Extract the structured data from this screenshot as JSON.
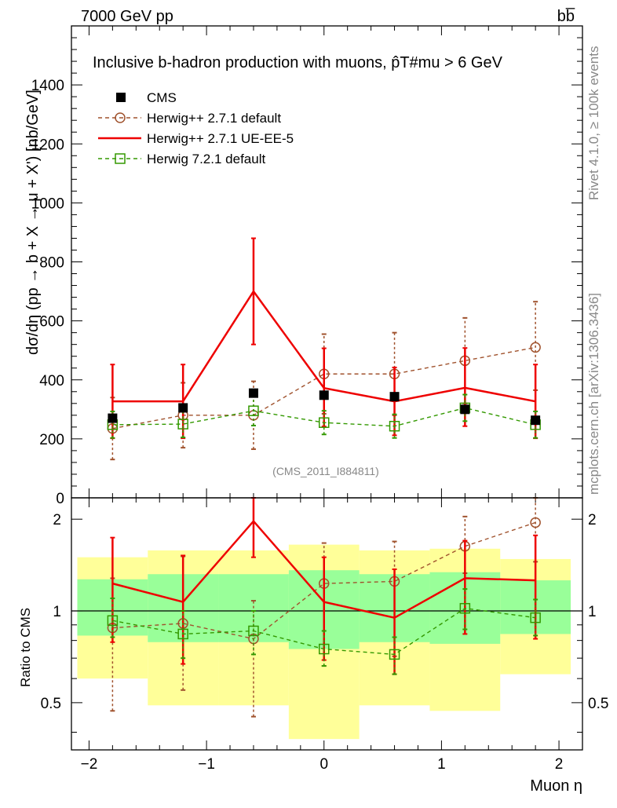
{
  "header": {
    "left_label": "7000 GeV pp",
    "right_label": "bb̅",
    "side_label_top": "Rivet 4.1.0, ≥ 100k events",
    "side_label_bottom": "mcplots.cern.ch [arXiv:1306.3436]",
    "analysis_tag": "(CMS_2011_I884811)"
  },
  "chart_data": [
    {
      "type": "scatter",
      "panel": "main",
      "title": "Inclusive b-hadron production with muons, p̂T#mu > 6 GeV",
      "xlabel": "Muon η",
      "ylabel": "dσ/dη (pp → b + X → μ + X') [nb/GeV]",
      "xlim": [
        -2.15,
        2.2
      ],
      "ylim": [
        0,
        1600
      ],
      "yticks": [
        0,
        200,
        400,
        600,
        800,
        1000,
        1200,
        1400
      ],
      "ytick_labels": [
        "0",
        "200",
        "400",
        "600",
        "800",
        "1000",
        "1200",
        "1400"
      ],
      "legend_position": "top-left",
      "series": [
        {
          "name": "CMS",
          "kind": "data",
          "color": "#000000",
          "x": [
            -1.8,
            -1.2,
            -0.6,
            0.0,
            0.6,
            1.2,
            1.8
          ],
          "y": [
            270,
            305,
            355,
            348,
            343,
            300,
            263
          ]
        },
        {
          "name": "Herwig++ 2.7.1 default",
          "kind": "circle-dashed",
          "color": "#a0522d",
          "x": [
            -1.8,
            -1.2,
            -0.6,
            0.0,
            0.6,
            1.2,
            1.8
          ],
          "y": [
            235,
            280,
            280,
            420,
            420,
            465,
            510
          ],
          "err_low": [
            105,
            110,
            115,
            135,
            140,
            145,
            145
          ],
          "err_high": [
            105,
            110,
            115,
            135,
            140,
            145,
            155
          ]
        },
        {
          "name": "Herwig++ 2.7.1 UE-EE-5",
          "kind": "step-solid",
          "color": "#ee0000",
          "edges": [
            -1.8,
            -1.2,
            -0.6,
            0.0,
            0.6,
            1.2,
            1.8
          ],
          "x": [
            -1.8,
            -1.2,
            -0.6,
            0.0,
            0.6,
            1.2,
            1.8
          ],
          "y": [
            327,
            327,
            700,
            372,
            327,
            373,
            327
          ],
          "err_low": [
            125,
            125,
            180,
            130,
            115,
            130,
            125
          ],
          "err_high": [
            125,
            125,
            180,
            135,
            115,
            135,
            125
          ]
        },
        {
          "name": "Herwig 7.2.1 default",
          "kind": "square-dashed",
          "color": "#339900",
          "x": [
            -1.8,
            -1.2,
            -0.6,
            0.0,
            0.6,
            1.2,
            1.8
          ],
          "y": [
            248,
            250,
            295,
            255,
            243,
            305,
            248
          ],
          "err_low": [
            45,
            45,
            50,
            40,
            40,
            45,
            45
          ],
          "err_high": [
            45,
            45,
            50,
            40,
            40,
            45,
            45
          ]
        }
      ]
    },
    {
      "type": "scatter",
      "panel": "ratio",
      "ylabel": "Ratio to CMS",
      "xlabel": "Muon η",
      "xlim": [
        -2.15,
        2.2
      ],
      "ylim": [
        0.35,
        2.35
      ],
      "yticks": [
        0.5,
        1,
        2
      ],
      "ytick_labels": [
        "0.5",
        "1",
        "2"
      ],
      "xticks": [
        -2,
        -1,
        0,
        1,
        2
      ],
      "xtick_labels": [
        "−2",
        "−1",
        "0",
        "1",
        "2"
      ],
      "bands": {
        "bins": [
          [
            -2.1,
            -1.5
          ],
          [
            -1.5,
            -0.9
          ],
          [
            -0.9,
            -0.3
          ],
          [
            -0.3,
            0.3
          ],
          [
            0.3,
            0.9
          ],
          [
            0.9,
            1.5
          ],
          [
            1.5,
            2.1
          ]
        ],
        "outer_low": [
          0.6,
          0.49,
          0.49,
          0.38,
          0.49,
          0.47,
          0.62
        ],
        "outer_high": [
          1.5,
          1.58,
          1.58,
          1.65,
          1.58,
          1.6,
          1.48
        ],
        "inner_low": [
          0.83,
          0.79,
          0.79,
          0.75,
          0.79,
          0.78,
          0.84
        ],
        "inner_high": [
          1.27,
          1.32,
          1.32,
          1.36,
          1.32,
          1.34,
          1.26
        ]
      },
      "series": [
        {
          "name": "Herwig++ 2.7.1 default",
          "kind": "circle-dashed",
          "color": "#a0522d",
          "x": [
            -1.8,
            -1.2,
            -0.6,
            0.0,
            0.6,
            1.2,
            1.8
          ],
          "y": [
            0.88,
            0.91,
            0.81,
            1.23,
            1.25,
            1.63,
            1.95
          ],
          "lo": [
            0.47,
            0.55,
            0.45,
            0.66,
            0.71,
            1.33,
            1.45
          ],
          "hi": [
            1.28,
            1.51,
            1.08,
            1.67,
            1.69,
            2.04,
            2.42
          ]
        },
        {
          "name": "Herwig++ 2.7.1 UE-EE-5",
          "kind": "step-solid",
          "color": "#ee0000",
          "edges": [
            -1.8,
            -1.2,
            -0.6,
            0.0,
            0.6,
            1.2,
            1.8
          ],
          "x": [
            -1.8,
            -1.2,
            -0.6,
            0.0,
            0.6,
            1.2,
            1.8
          ],
          "y": [
            1.23,
            1.07,
            1.97,
            1.07,
            0.95,
            1.28,
            1.26
          ],
          "lo": [
            0.79,
            0.67,
            1.5,
            0.69,
            0.62,
            0.84,
            0.81
          ],
          "hi": [
            1.74,
            1.52,
            2.4,
            1.5,
            1.37,
            1.7,
            1.77
          ]
        },
        {
          "name": "Herwig 7.2.1 default",
          "kind": "square-dashed",
          "color": "#339900",
          "x": [
            -1.8,
            -1.2,
            -0.6,
            0.0,
            0.6,
            1.2,
            1.8
          ],
          "y": [
            0.93,
            0.84,
            0.86,
            0.75,
            0.72,
            1.02,
            0.95
          ],
          "lo": [
            0.82,
            0.7,
            0.72,
            0.66,
            0.62,
            0.87,
            0.83
          ],
          "hi": [
            1.1,
            1.0,
            1.0,
            0.86,
            0.82,
            1.18,
            1.09
          ]
        }
      ]
    }
  ]
}
